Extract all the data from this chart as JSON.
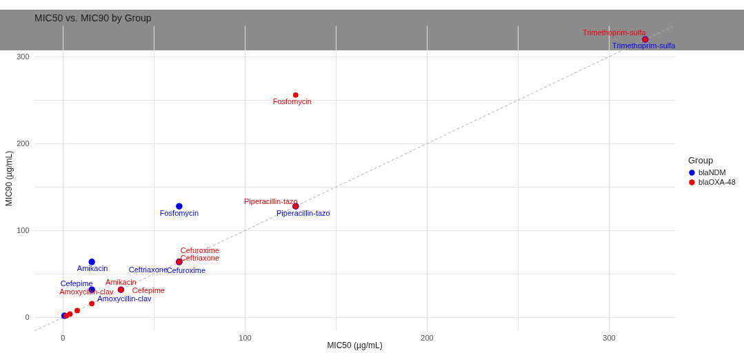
{
  "chart_data": {
    "type": "scatter",
    "title": "MIC50 vs. MIC90 by Group",
    "xlabel": "MIC50 (µg/mL)",
    "ylabel": "MIC90 (µg/mL)",
    "legend_title": "Group",
    "legend": "right",
    "grid": true,
    "marker": "circle",
    "xlim": [
      -15.5,
      336
    ],
    "ylim": [
      -15.5,
      336
    ],
    "xticks": [
      0,
      {
        "value": 50,
        "label": null
      },
      100,
      {
        "value": 150,
        "label": null
      },
      200,
      {
        "value": 250,
        "label": null
      },
      300
    ],
    "yticks": [
      0,
      {
        "value": 50,
        "label": null
      },
      100,
      {
        "value": 150,
        "label": null
      },
      200,
      {
        "value": 250,
        "label": null
      },
      300
    ],
    "series": [
      {
        "type": "line",
        "line_style": "dashed",
        "marker": "none",
        "color": "#b0b0b0",
        "x": [
          -15.5,
          336
        ],
        "values": [
          -15.5,
          336
        ]
      },
      {
        "name": "blaNDM",
        "color": "#0000ee",
        "x": [
          1,
          16,
          16,
          64,
          64,
          64,
          32,
          128,
          320
        ],
        "values": [
          2,
          64,
          32,
          128,
          64,
          64,
          32,
          128,
          320
        ],
        "value_labels": [
          null,
          "Amikacin",
          "Cefepime",
          "Fosfomycin",
          "Cefuroxime",
          "Ceftriaxone",
          "Amoxycillin-clav",
          "Piperacillin-tazo",
          "Trimethoprim-sulfa"
        ]
      },
      {
        "name": "blaOXA-48",
        "color": "#ee0000",
        "x": [
          2,
          4,
          8,
          16,
          32,
          32,
          32,
          64,
          64,
          128,
          128,
          320
        ],
        "values": [
          2,
          4,
          8,
          16,
          32,
          32,
          32,
          64,
          64,
          128,
          256,
          320
        ],
        "value_labels": [
          null,
          null,
          null,
          null,
          "Amikacin",
          "Amoxycillin-clav",
          "Cefepime",
          "Cefuroxime",
          "Ceftriaxone",
          "Piperacillin-tazo",
          "Fosfomycin",
          "Trimethoprim-sulfa"
        ]
      }
    ]
  }
}
